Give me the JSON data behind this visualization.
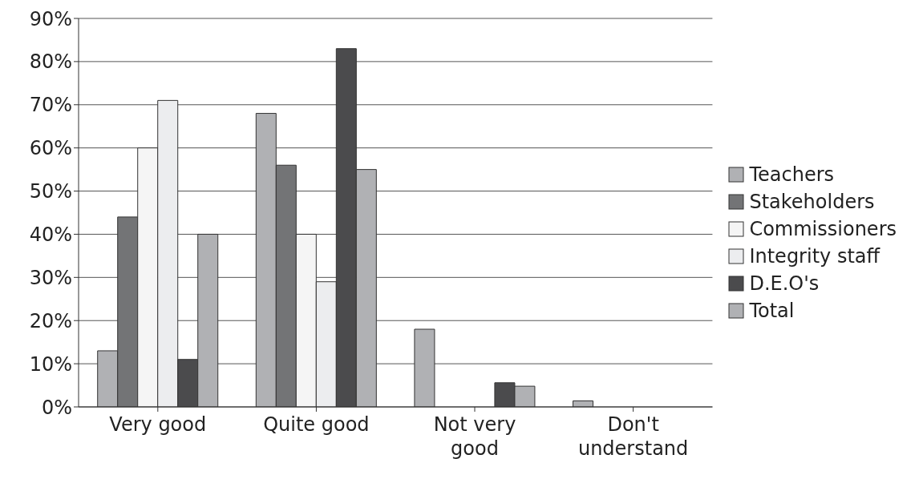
{
  "chart_data": {
    "type": "bar",
    "categories": [
      "Very good",
      "Quite good",
      "Not very good",
      "Don't understand"
    ],
    "series": [
      {
        "name": "Teachers",
        "color": "#b0b1b4",
        "values": [
          13,
          68,
          18,
          1.4
        ]
      },
      {
        "name": "Stakeholders",
        "color": "#737476",
        "values": [
          44,
          56,
          0,
          0
        ]
      },
      {
        "name": "Commissioners",
        "color": "#f5f5f5",
        "values": [
          60,
          40,
          0,
          0
        ]
      },
      {
        "name": "Integrity staff",
        "color": "#ecedef",
        "values": [
          71,
          29,
          0,
          0
        ]
      },
      {
        "name": "D.E.O's",
        "color": "#4b4b4d",
        "values": [
          11,
          83,
          5.6,
          0
        ]
      },
      {
        "name": "Total",
        "color": "#b0b1b4",
        "values": [
          40,
          55,
          4.8,
          0
        ]
      }
    ],
    "ylim": [
      0,
      90
    ],
    "yticks": [
      {
        "value": 0,
        "label": "0%"
      },
      {
        "value": 10,
        "label": "10%"
      },
      {
        "value": 20,
        "label": "20%"
      },
      {
        "value": 30,
        "label": "30%"
      },
      {
        "value": 40,
        "label": "40%"
      },
      {
        "value": 50,
        "label": "50%"
      },
      {
        "value": 60,
        "label": "60%"
      },
      {
        "value": 70,
        "label": "70%"
      },
      {
        "value": 80,
        "label": "80%"
      },
      {
        "value": 90,
        "label": "90%"
      }
    ],
    "grid": "y",
    "legend": "right"
  }
}
